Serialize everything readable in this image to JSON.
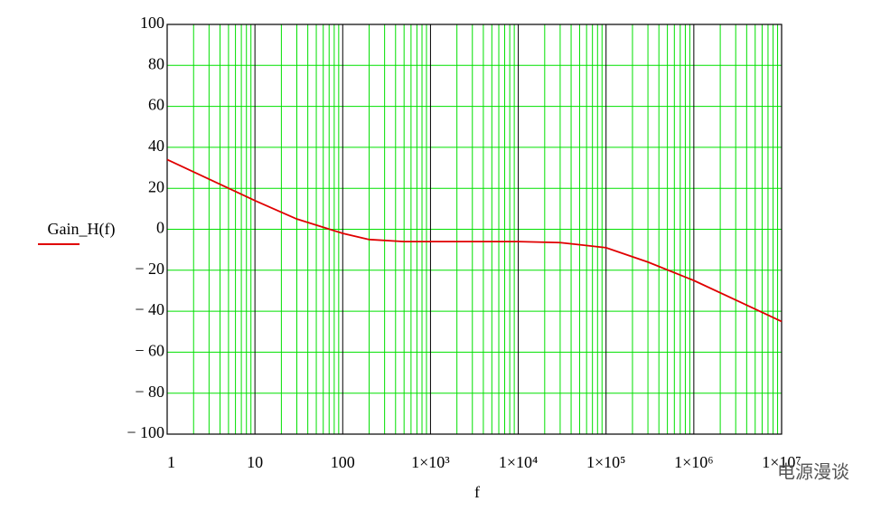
{
  "chart_data": {
    "type": "line",
    "x_label": "f",
    "log_x": true,
    "x": [
      1,
      3,
      10,
      30,
      100,
      200,
      500,
      1000,
      10000,
      30000,
      100000,
      300000,
      1000000,
      3000000,
      10000000
    ],
    "series": [
      {
        "name": "Gain_H(f)",
        "color": "#e00000",
        "values": [
          34,
          24.5,
          14,
          5,
          -2,
          -5,
          -6,
          -6,
          -6,
          -6.5,
          -9,
          -16,
          -25,
          -34.5,
          -45
        ]
      }
    ],
    "xlim": [
      1,
      10000000
    ],
    "xticks": [
      {
        "value": 1,
        "label": "1"
      },
      {
        "value": 10,
        "label": "10"
      },
      {
        "value": 100,
        "label": "100"
      },
      {
        "value": 1000,
        "label": "1×10³"
      },
      {
        "value": 10000,
        "label": "1×10⁴"
      },
      {
        "value": 100000,
        "label": "1×10⁵"
      },
      {
        "value": 1000000,
        "label": "1×10⁶"
      },
      {
        "value": 10000000,
        "label": "1×10⁷"
      }
    ],
    "ylim": [
      -100,
      100
    ],
    "yticks": [
      {
        "value": 100,
        "label": "100"
      },
      {
        "value": 80,
        "label": "80"
      },
      {
        "value": 60,
        "label": "60"
      },
      {
        "value": 40,
        "label": "40"
      },
      {
        "value": 20,
        "label": "20"
      },
      {
        "value": 0,
        "label": "0"
      },
      {
        "value": -20,
        "label": "− 20"
      },
      {
        "value": -40,
        "label": "− 40"
      },
      {
        "value": -60,
        "label": "− 60"
      },
      {
        "value": -80,
        "label": "− 80"
      },
      {
        "value": -100,
        "label": "− 100"
      }
    ],
    "grid": true,
    "grid_color": "#00e000",
    "decade_grid_color": "#000000",
    "watermark": "电源漫谈"
  }
}
